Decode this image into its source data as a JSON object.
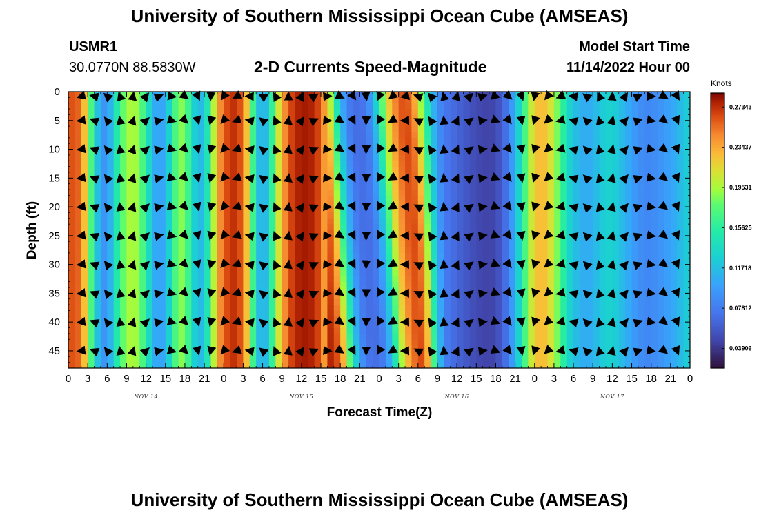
{
  "header": {
    "title": "University of Southern Mississippi Ocean Cube (AMSEAS)",
    "station_id": "USMR1",
    "location": "30.0770N  88.5830W",
    "model_start_label": "Model Start Time",
    "model_start_value": "11/14/2022 Hour 00",
    "plot_title": "2-D Currents Speed-Magnitude"
  },
  "footer": {
    "title": "University of Southern Mississippi Ocean Cube (AMSEAS)"
  },
  "colors": {
    "background": "#ffffff",
    "arrow": "#000000"
  },
  "chart_data": {
    "type": "heatmap",
    "title": "2-D Currents Speed-Magnitude",
    "xlabel": "Forecast Time(Z)",
    "ylabel": "Depth (ft)",
    "xlim": [
      0,
      96
    ],
    "ylim": [
      0,
      48
    ],
    "x_ticks": [
      0,
      3,
      6,
      9,
      12,
      15,
      18,
      21,
      24,
      27,
      30,
      33,
      36,
      39,
      42,
      45,
      48,
      51,
      54,
      57,
      60,
      63,
      66,
      69,
      72,
      75,
      78,
      81,
      84,
      87,
      90,
      93,
      96
    ],
    "x_tick_labels": [
      "0",
      "3",
      "6",
      "9",
      "12",
      "15",
      "18",
      "21",
      "0",
      "3",
      "6",
      "9",
      "12",
      "15",
      "18",
      "21",
      "0",
      "3",
      "6",
      "9",
      "12",
      "15",
      "18",
      "21",
      "0",
      "3",
      "6",
      "9",
      "12",
      "15",
      "18",
      "21",
      "0"
    ],
    "y_ticks": [
      0,
      5,
      10,
      15,
      20,
      25,
      30,
      35,
      40,
      45
    ],
    "y_tick_labels": [
      "0",
      "5",
      "10",
      "15",
      "20",
      "25",
      "30",
      "35",
      "40",
      "45"
    ],
    "date_labels": [
      {
        "text": "NOV 14",
        "hour": 12
      },
      {
        "text": "NOV 15",
        "hour": 36
      },
      {
        "text": "NOV 16",
        "hour": 60
      },
      {
        "text": "NOV 17",
        "hour": 84
      }
    ],
    "colorbar": {
      "unit": "Knots",
      "min": 0.02,
      "max": 0.287,
      "labels": [
        "0.27343",
        "0.23437",
        "0.19531",
        "0.15625",
        "0.11718",
        "0.07812",
        "0.03906"
      ],
      "label_values": [
        0.27343,
        0.23437,
        0.19531,
        0.15625,
        0.11718,
        0.07812,
        0.03906
      ]
    },
    "speed_profile_knots": {
      "hours": [
        0,
        1,
        2,
        3,
        4,
        5,
        6,
        7,
        8,
        9,
        10,
        11,
        12,
        13,
        14,
        15,
        16,
        17,
        18,
        19,
        20,
        21,
        22,
        23,
        24,
        25,
        26,
        27,
        28,
        29,
        30,
        31,
        32,
        33,
        34,
        35,
        36,
        37,
        38,
        39,
        40,
        41,
        42,
        43,
        44,
        45,
        46,
        47,
        48,
        49,
        50,
        51,
        52,
        53,
        54,
        55,
        56,
        57,
        58,
        59,
        60,
        61,
        62,
        63,
        64,
        65,
        66,
        67,
        68,
        69,
        70,
        71,
        72,
        73,
        74,
        75,
        76,
        77,
        78,
        79,
        80,
        81,
        82,
        83,
        84,
        85,
        86,
        87,
        88,
        89,
        90,
        91,
        92,
        93,
        94,
        95,
        96
      ],
      "values": [
        0.26,
        0.265,
        0.25,
        0.2,
        0.14,
        0.095,
        0.09,
        0.13,
        0.17,
        0.19,
        0.2,
        0.185,
        0.155,
        0.115,
        0.095,
        0.11,
        0.15,
        0.19,
        0.185,
        0.145,
        0.11,
        0.12,
        0.17,
        0.23,
        0.26,
        0.27,
        0.275,
        0.25,
        0.2,
        0.13,
        0.1,
        0.13,
        0.19,
        0.23,
        0.26,
        0.275,
        0.28,
        0.28,
        0.275,
        0.26,
        0.22,
        0.16,
        0.11,
        0.08,
        0.07,
        0.07,
        0.08,
        0.11,
        0.16,
        0.21,
        0.24,
        0.26,
        0.265,
        0.25,
        0.21,
        0.16,
        0.12,
        0.09,
        0.075,
        0.07,
        0.065,
        0.06,
        0.055,
        0.05,
        0.048,
        0.045,
        0.05,
        0.06,
        0.08,
        0.11,
        0.15,
        0.19,
        0.22,
        0.23,
        0.22,
        0.2,
        0.17,
        0.14,
        0.12,
        0.11,
        0.105,
        0.11,
        0.12,
        0.13,
        0.13,
        0.12,
        0.11,
        0.1,
        0.09,
        0.085,
        0.085,
        0.09,
        0.095,
        0.1,
        0.11,
        0.12,
        0.13
      ]
    },
    "arrow_grid": {
      "depths": [
        0,
        5,
        10,
        15,
        20,
        25,
        30,
        35,
        40,
        45
      ],
      "hour_step": 2
    }
  }
}
